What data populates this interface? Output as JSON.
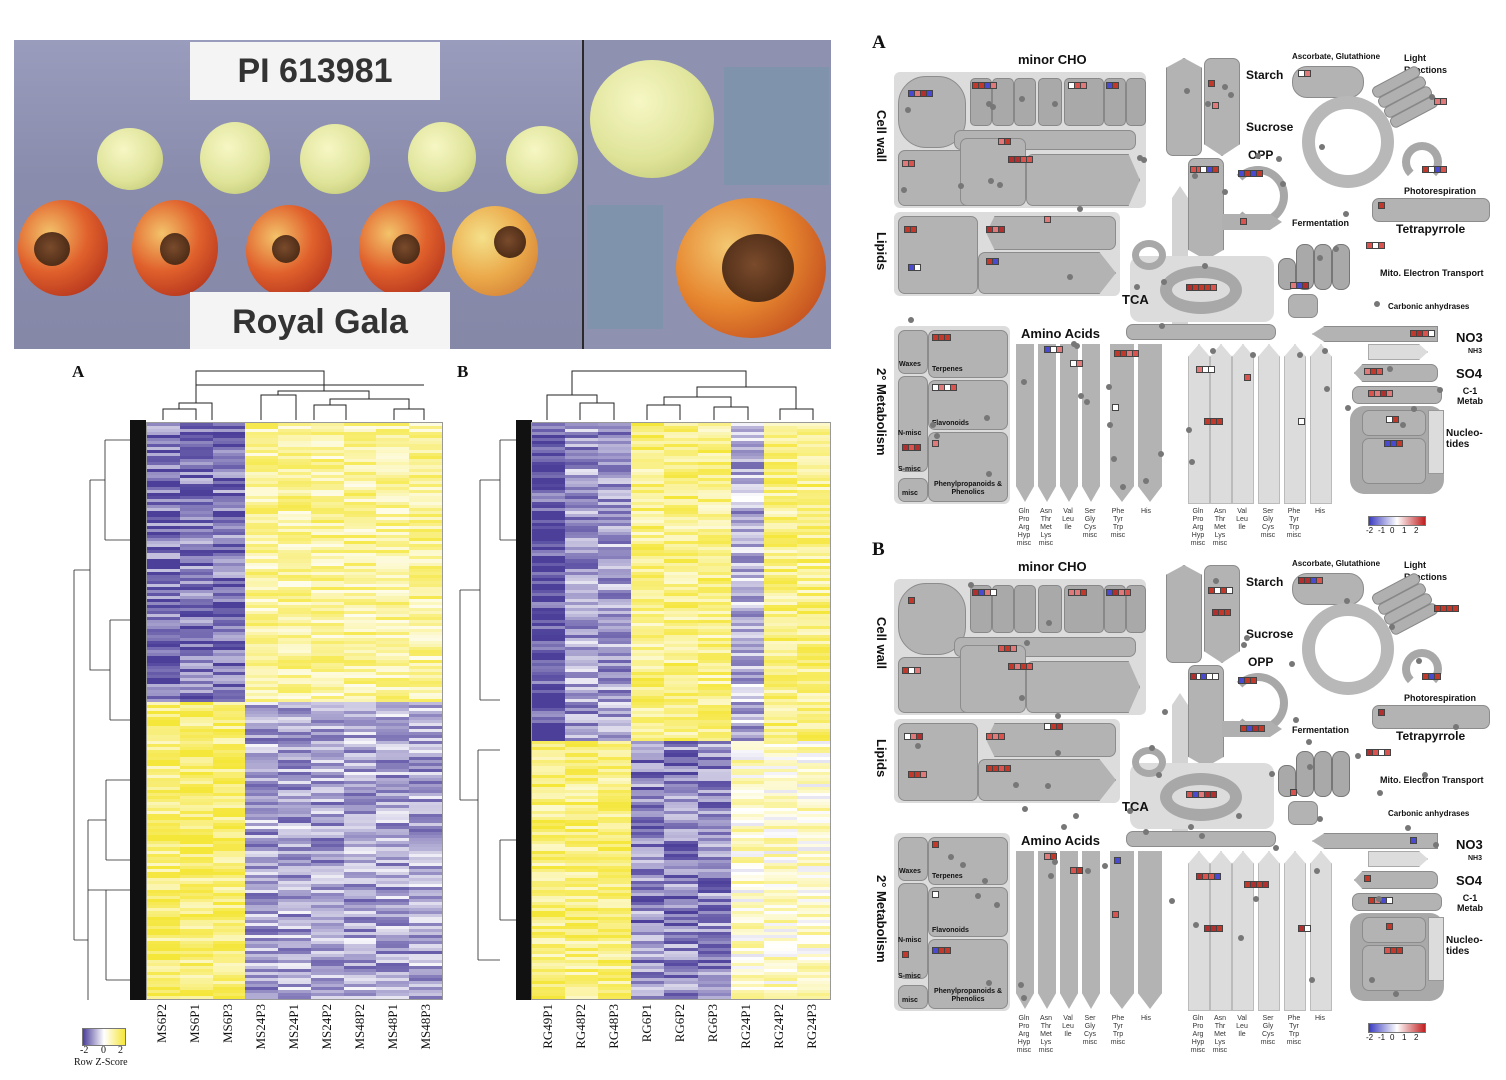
{
  "photo": {
    "top_label": "PI 613981",
    "bottom_label": "Royal Gala"
  },
  "heatmaps": {
    "panel_a_letter": "A",
    "panel_b_letter": "B",
    "panel_a_columns": [
      "MS6P2",
      "MS6P1",
      "MS6P3",
      "MS24P3",
      "MS24P1",
      "MS24P2",
      "MS48P2",
      "MS48P1",
      "MS48P3"
    ],
    "panel_b_columns": [
      "RG49P1",
      "RG48P2",
      "RG48P3",
      "RG6P1",
      "RG6P2",
      "RG6P3",
      "RG24P1",
      "RG24P2",
      "RG24P3"
    ],
    "legend": {
      "ticks": [
        "-2",
        "0",
        "2"
      ],
      "title": "Row Z-Score",
      "low_color": "#4b3f9a",
      "mid_color": "#ffffff",
      "high_color": "#f5e63a"
    }
  },
  "pathway_maps": [
    {
      "letter": "A",
      "labels": {
        "minor_cho": "minor CHO",
        "cell_wall": "Cell wall",
        "lipids": "Lipids",
        "secondary_metabolism": "2° Metabolism",
        "starch": "Starch",
        "sucrose": "Sucrose",
        "opp": "OPP",
        "ascorbate": "Ascorbate, Glutathione",
        "light_reactions": "Light Reactions",
        "photorespiration": "Photorespiration",
        "tetrapyrrole": "Tetrapyrrole",
        "fermentation": "Fermentation",
        "tca": "TCA",
        "mito": "Mito. Electron Transport",
        "carbonic": "Carbonic anhydrases",
        "amino_acids": "Amino Acids",
        "no3": "NO3",
        "nh3": "NH3",
        "so4": "SO4",
        "c1_metab": "C-1 Metab",
        "nucleotides": "Nucleo- tides",
        "waxes": "Waxes",
        "terpenes": "Terpenes",
        "flavonoids": "Flavonoids",
        "n_misc": "N-misc",
        "s_misc": "S-misc",
        "misc": "misc",
        "phenylpropanoids": "Phenylpropanoids & Phenolics"
      },
      "aa_groups_1": [
        "Gln Pro Arg Hyp misc",
        "Asn Thr Met Lys misc",
        "Val Leu Ile",
        "Ser Gly Cys misc",
        "Phe Tyr Trp misc",
        "His"
      ],
      "aa_groups_2": [
        "Gln Pro Arg Hyp misc",
        "Asn Thr Met Lys misc",
        "Val Leu Ile",
        "Ser Gly Cys misc",
        "Phe Tyr Trp misc",
        "His"
      ],
      "scale_ticks": [
        "-2",
        "-1",
        "0",
        "1",
        "2"
      ]
    },
    {
      "letter": "B",
      "labels": {
        "minor_cho": "minor CHO",
        "cell_wall": "Cell wall",
        "lipids": "Lipids",
        "secondary_metabolism": "2° Metabolism",
        "starch": "Starch",
        "sucrose": "Sucrose",
        "opp": "OPP",
        "ascorbate": "Ascorbate, Glutathione",
        "light_reactions": "Light Reactions",
        "photorespiration": "Photorespiration",
        "tetrapyrrole": "Tetrapyrrole",
        "fermentation": "Fermentation",
        "tca": "TCA",
        "mito": "Mito. Electron Transport",
        "carbonic": "Carbonic anhydrases",
        "amino_acids": "Amino Acids",
        "no3": "NO3",
        "nh3": "NH3",
        "so4": "SO4",
        "c1_metab": "C-1 Metab",
        "nucleotides": "Nucleo- tides",
        "waxes": "Waxes",
        "terpenes": "Terpenes",
        "flavonoids": "Flavonoids",
        "n_misc": "N-misc",
        "s_misc": "S-misc",
        "misc": "misc",
        "phenylpropanoids": "Phenylpropanoids & Phenolics"
      },
      "aa_groups_1": [
        "Gln Pro Arg Hyp misc",
        "Asn Thr Met Lys misc",
        "Val Leu Ile",
        "Ser Gly Cys misc",
        "Phe Tyr Trp misc",
        "His"
      ],
      "aa_groups_2": [
        "Gln Pro Arg Hyp misc",
        "Asn Thr Met Lys misc",
        "Val Leu Ile",
        "Ser Gly Cys misc",
        "Phe Tyr Trp misc",
        "His"
      ],
      "scale_ticks": [
        "-2",
        "-1",
        "0",
        "1",
        "2"
      ]
    }
  ]
}
